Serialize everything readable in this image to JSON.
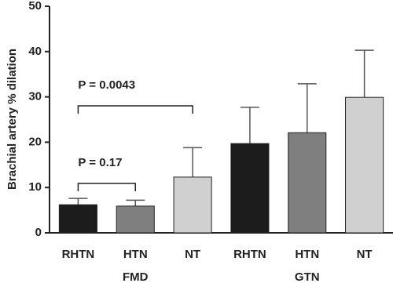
{
  "chart_data": {
    "type": "bar",
    "y_label": "Brachial artery % dilation",
    "categories": [
      "RHTN",
      "HTN",
      "NT",
      "RHTN",
      "HTN",
      "NT"
    ],
    "groups": [
      "FMD",
      "GTN"
    ],
    "values": [
      6.2,
      5.9,
      12.3,
      19.7,
      22.1,
      29.9
    ],
    "errors": [
      1.4,
      1.3,
      6.5,
      8.0,
      10.8,
      10.4
    ],
    "colors": [
      "#1c1c1c",
      "#7f7f7f",
      "#d0d0d0",
      "#1c1c1c",
      "#7f7f7f",
      "#d0d0d0"
    ],
    "ylim": [
      0,
      50
    ],
    "yticks": [
      0,
      10,
      20,
      30,
      40,
      50
    ],
    "grid": false,
    "annotations": [
      {
        "text": "P = 0.0043",
        "from": 0,
        "to": 2
      },
      {
        "text": "P = 0.17",
        "from": 0,
        "to": 1
      }
    ]
  }
}
